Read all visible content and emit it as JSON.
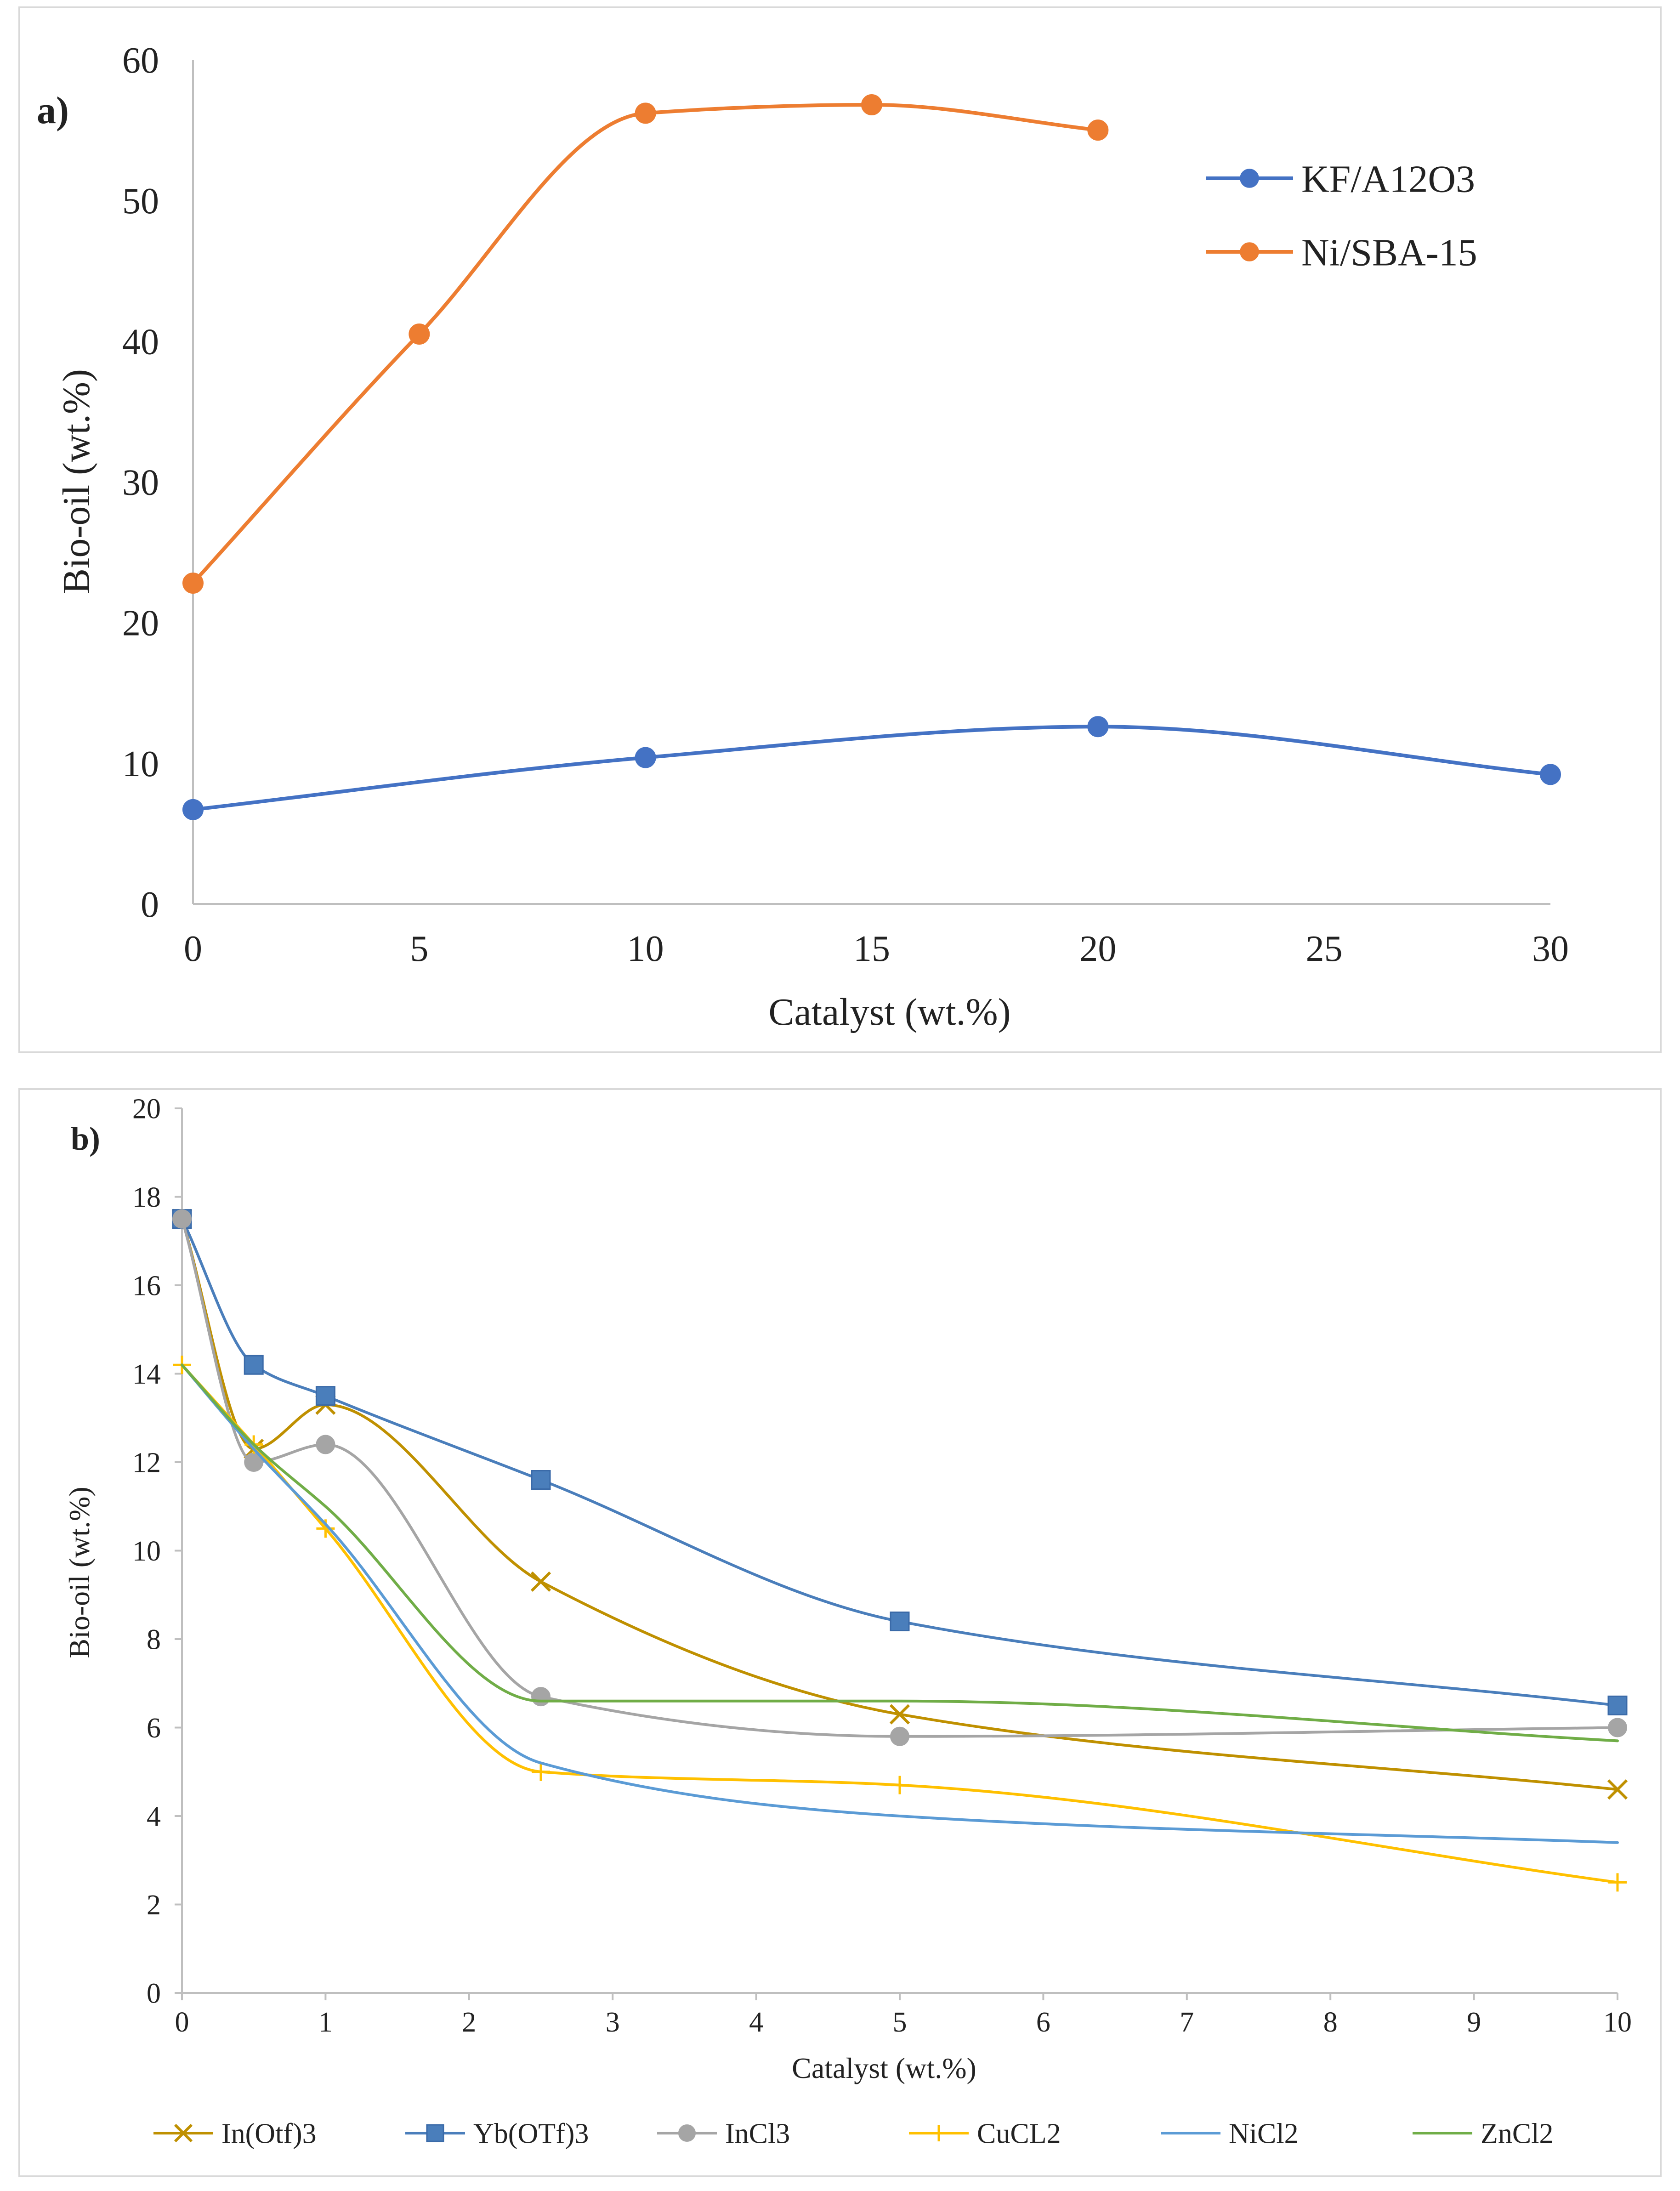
{
  "chart_data": [
    {
      "type": "line",
      "panel_label": "a)",
      "xlabel": "Catalyst (wt.%)",
      "ylabel": "Bio-oil (wt.%)",
      "xlim": [
        0,
        30
      ],
      "ylim": [
        0,
        60
      ],
      "xticks": [
        0,
        5,
        10,
        15,
        20,
        25,
        30
      ],
      "yticks": [
        0,
        10,
        20,
        30,
        40,
        50,
        60
      ],
      "legend_position": "top-right",
      "series": [
        {
          "name": "KF/A12O3",
          "color": "#4472C4",
          "marker": "circle",
          "x": [
            0,
            10,
            20,
            30
          ],
          "y": [
            6.7,
            10.4,
            12.6,
            9.2
          ]
        },
        {
          "name": "Ni/SBA-15",
          "color": "#ED7D31",
          "marker": "circle",
          "x": [
            0,
            5,
            10,
            15,
            20
          ],
          "y": [
            22.8,
            40.5,
            56.2,
            56.8,
            55.0
          ]
        }
      ]
    },
    {
      "type": "line",
      "panel_label": "b)",
      "xlabel": "Catalyst (wt.%)",
      "ylabel": "Bio-oil (wt.%)",
      "xlim": [
        0,
        10
      ],
      "ylim": [
        0,
        20
      ],
      "xticks": [
        0,
        1,
        2,
        3,
        4,
        5,
        6,
        7,
        8,
        9,
        10
      ],
      "yticks": [
        0,
        2,
        4,
        6,
        8,
        10,
        12,
        14,
        16,
        18,
        20
      ],
      "legend_position": "bottom",
      "series": [
        {
          "name": "In(Otf)3",
          "color": "#BF9000",
          "marker": "x",
          "x": [
            0,
            0.5,
            1,
            2.5,
            5,
            10
          ],
          "y": [
            17.5,
            12.3,
            13.3,
            9.3,
            6.3,
            4.6
          ]
        },
        {
          "name": "Yb(OTf)3",
          "color": "#4A7EBB",
          "marker": "square",
          "x": [
            0,
            0.5,
            1,
            2.5,
            5,
            10
          ],
          "y": [
            17.5,
            14.2,
            13.5,
            11.6,
            8.4,
            6.5
          ]
        },
        {
          "name": "InCl3",
          "color": "#A5A5A5",
          "marker": "circle",
          "x": [
            0,
            0.5,
            1,
            2.5,
            5,
            10
          ],
          "y": [
            17.5,
            12.0,
            12.4,
            6.7,
            5.8,
            6.0
          ]
        },
        {
          "name": "CuCL2",
          "color": "#FFC000",
          "marker": "plus",
          "x": [
            0,
            0.5,
            1,
            2.5,
            5,
            10
          ],
          "y": [
            14.2,
            12.4,
            10.5,
            5.0,
            4.7,
            2.5
          ]
        },
        {
          "name": "NiCl2",
          "color": "#5B9BD5",
          "marker": "none",
          "x": [
            0,
            0.5,
            1,
            2.5,
            5,
            10
          ],
          "y": [
            14.2,
            12.3,
            10.6,
            5.2,
            4.0,
            3.4
          ]
        },
        {
          "name": "ZnCl2",
          "color": "#70AD47",
          "marker": "none",
          "x": [
            0,
            0.5,
            1,
            2.5,
            5,
            10
          ],
          "y": [
            14.2,
            12.4,
            11.0,
            6.6,
            6.6,
            5.7
          ]
        }
      ]
    }
  ]
}
